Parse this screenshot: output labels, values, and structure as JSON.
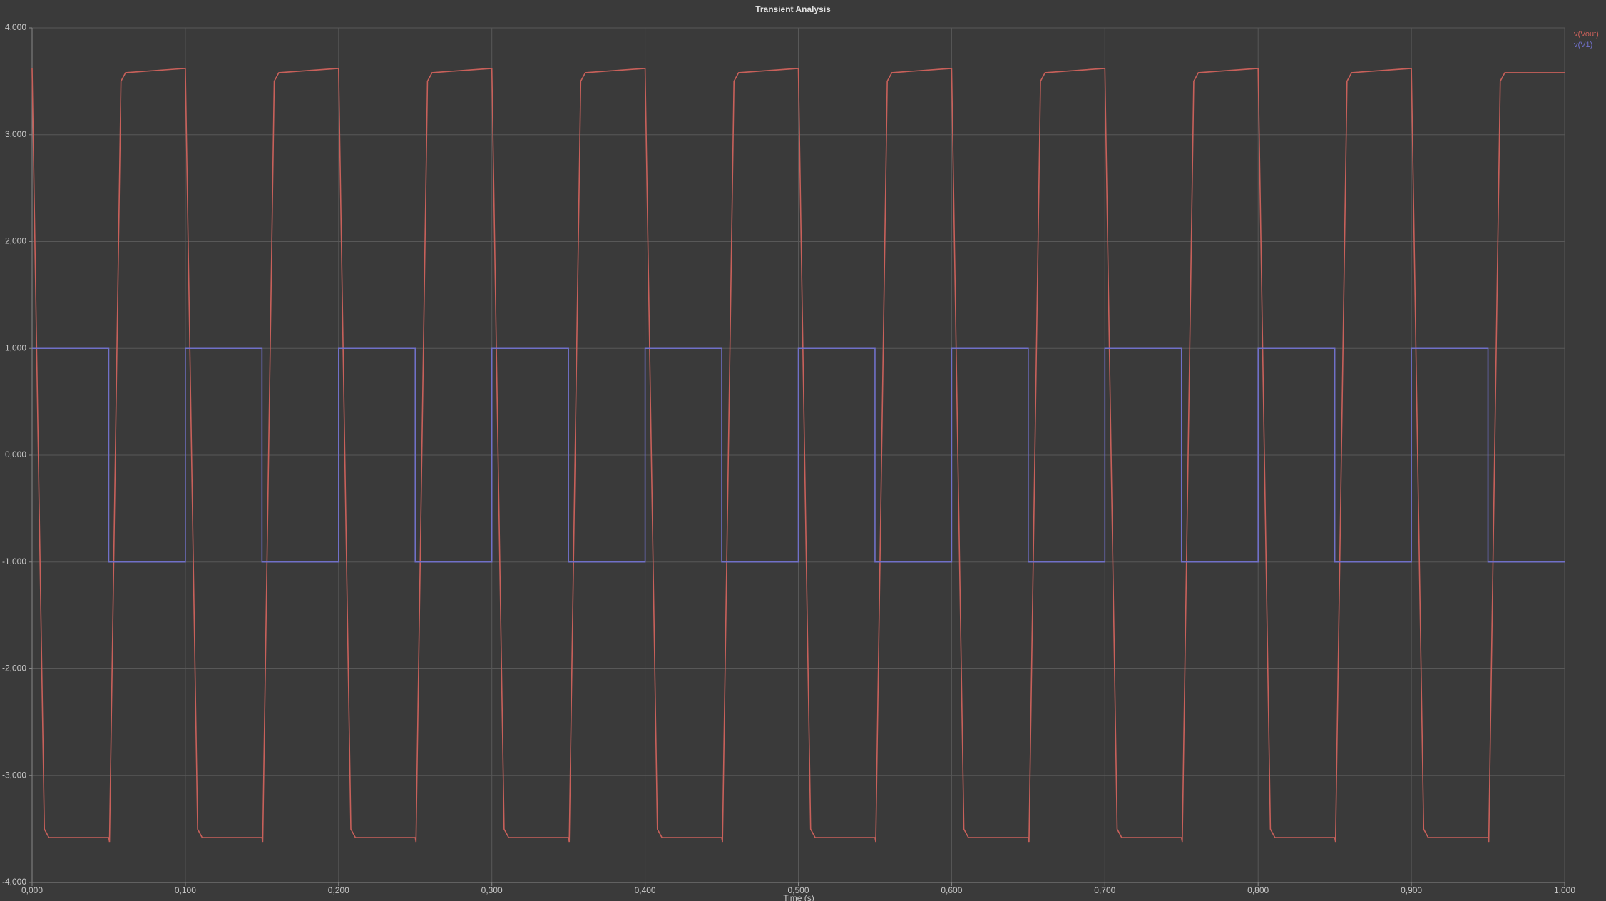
{
  "chart_data": {
    "type": "line",
    "title": "Transient Analysis",
    "x_label": "Time (s)",
    "xlim": [
      0,
      1
    ],
    "ylim": [
      -4,
      4
    ],
    "grid": true,
    "legend": "top-right",
    "xticks": [
      {
        "value": 0,
        "label": "0,000"
      },
      {
        "value": 0.1,
        "label": "0,100"
      },
      {
        "value": 0.2,
        "label": "0,200"
      },
      {
        "value": 0.3,
        "label": "0,300"
      },
      {
        "value": 0.4,
        "label": "0,400"
      },
      {
        "value": 0.5,
        "label": "0,500"
      },
      {
        "value": 0.6,
        "label": "0,600"
      },
      {
        "value": 0.7,
        "label": "0,700"
      },
      {
        "value": 0.8,
        "label": "0,800"
      },
      {
        "value": 0.9,
        "label": "0,900"
      },
      {
        "value": 1,
        "label": "1,000"
      }
    ],
    "yticks": [
      {
        "value": -4,
        "label": "-4,000"
      },
      {
        "value": -3,
        "label": "-3,000"
      },
      {
        "value": -2,
        "label": "-2,000"
      },
      {
        "value": -1,
        "label": "-1,000"
      },
      {
        "value": 0,
        "label": "0,000"
      },
      {
        "value": 1,
        "label": "1,000"
      },
      {
        "value": 2,
        "label": "2,000"
      },
      {
        "value": 3,
        "label": "3,000"
      },
      {
        "value": 4,
        "label": "4,000"
      }
    ],
    "series": [
      {
        "name": "v(Vout)",
        "color": "#c8605a",
        "x": [
          0,
          0.008,
          0.011,
          0.05,
          0.0505,
          0.058,
          0.061,
          0.1,
          0.108,
          0.111,
          0.15,
          0.1505,
          0.158,
          0.161,
          0.2,
          0.208,
          0.211,
          0.25,
          0.2505,
          0.258,
          0.261,
          0.3,
          0.308,
          0.311,
          0.35,
          0.3505,
          0.358,
          0.361,
          0.4,
          0.408,
          0.411,
          0.45,
          0.4505,
          0.458,
          0.461,
          0.5,
          0.508,
          0.511,
          0.55,
          0.5505,
          0.558,
          0.561,
          0.6,
          0.608,
          0.611,
          0.65,
          0.6505,
          0.658,
          0.661,
          0.7,
          0.708,
          0.711,
          0.75,
          0.7505,
          0.758,
          0.761,
          0.8,
          0.808,
          0.811,
          0.85,
          0.8505,
          0.858,
          0.861,
          0.9,
          0.908,
          0.911,
          0.95,
          0.9505,
          0.958,
          0.961,
          1
        ],
        "values": [
          3.62,
          -3.5,
          -3.58,
          -3.58,
          -3.62,
          3.5,
          3.58,
          3.62,
          -3.5,
          -3.58,
          -3.58,
          -3.62,
          3.5,
          3.58,
          3.62,
          -3.5,
          -3.58,
          -3.58,
          -3.62,
          3.5,
          3.58,
          3.62,
          -3.5,
          -3.58,
          -3.58,
          -3.62,
          3.5,
          3.58,
          3.62,
          -3.5,
          -3.58,
          -3.58,
          -3.62,
          3.5,
          3.58,
          3.62,
          -3.5,
          -3.58,
          -3.58,
          -3.62,
          3.5,
          3.58,
          3.62,
          -3.5,
          -3.58,
          -3.58,
          -3.62,
          3.5,
          3.58,
          3.62,
          -3.5,
          -3.58,
          -3.58,
          -3.62,
          3.5,
          3.58,
          3.62,
          -3.5,
          -3.58,
          -3.58,
          -3.62,
          3.5,
          3.58,
          3.62,
          -3.5,
          -3.58,
          -3.58,
          -3.62,
          3.5,
          3.58,
          3.58
        ]
      },
      {
        "name": "v(V1)",
        "color": "#7070c8",
        "x": [
          0,
          0.05,
          0.05,
          0.1,
          0.1,
          0.15,
          0.15,
          0.2,
          0.2,
          0.25,
          0.25,
          0.3,
          0.3,
          0.35,
          0.35,
          0.4,
          0.4,
          0.45,
          0.45,
          0.5,
          0.5,
          0.55,
          0.55,
          0.6,
          0.6,
          0.65,
          0.65,
          0.7,
          0.7,
          0.75,
          0.75,
          0.8,
          0.8,
          0.85,
          0.85,
          0.9,
          0.9,
          0.95,
          0.95,
          1
        ],
        "values": [
          1,
          1,
          -1,
          -1,
          1,
          1,
          -1,
          -1,
          1,
          1,
          -1,
          -1,
          1,
          1,
          -1,
          -1,
          1,
          1,
          -1,
          -1,
          1,
          1,
          -1,
          -1,
          1,
          1,
          -1,
          -1,
          1,
          1,
          -1,
          -1,
          1,
          1,
          -1,
          -1,
          1,
          1,
          -1,
          -1
        ]
      }
    ]
  }
}
